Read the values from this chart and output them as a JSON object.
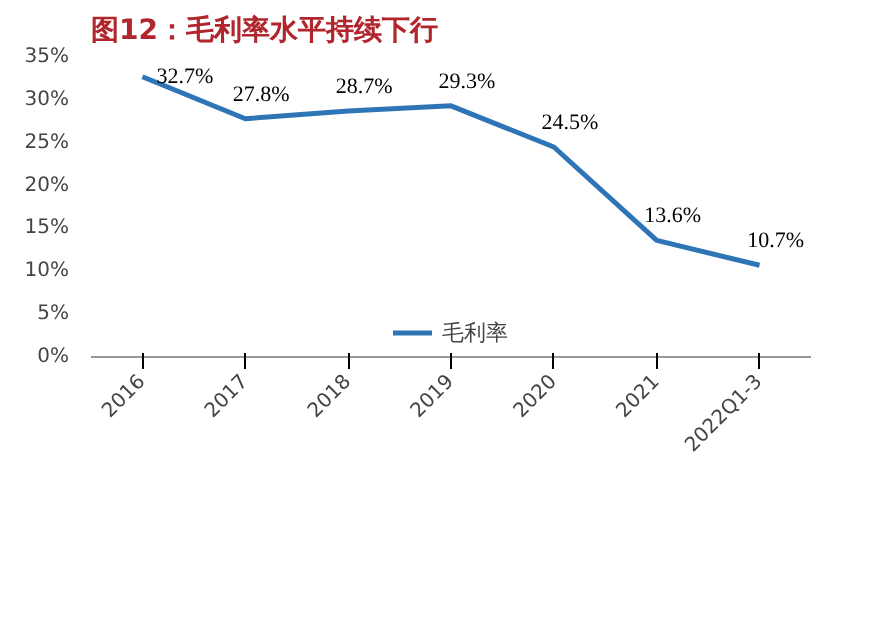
{
  "chart_data": {
    "type": "line",
    "title": "图12：毛利率水平持续下行",
    "categories": [
      "2016",
      "2017",
      "2018",
      "2019",
      "2020",
      "2021",
      "2022Q1-3"
    ],
    "series": [
      {
        "name": "毛利率",
        "color": "#2e75b6",
        "values": [
          32.7,
          27.8,
          28.7,
          29.3,
          24.5,
          13.6,
          10.7
        ]
      }
    ],
    "ylim": [
      0,
      35
    ],
    "yticks": [
      {
        "value": 0,
        "label": "0%"
      },
      {
        "value": 5,
        "label": "5%"
      },
      {
        "value": 10,
        "label": "10%"
      },
      {
        "value": 15,
        "label": "15%"
      },
      {
        "value": 20,
        "label": "20%"
      },
      {
        "value": 25,
        "label": "25%"
      },
      {
        "value": 30,
        "label": "30%"
      },
      {
        "value": 35,
        "label": "35%"
      }
    ],
    "value_labels": [
      "32.7%",
      "27.8%",
      "28.7%",
      "29.3%",
      "24.5%",
      "13.6%",
      "10.7%"
    ],
    "legend": "bottom",
    "grid": false
  }
}
